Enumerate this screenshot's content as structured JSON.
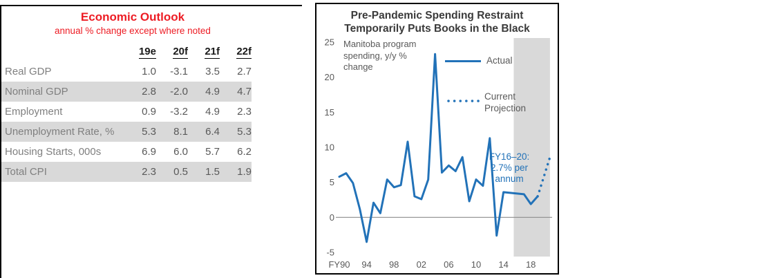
{
  "colors": {
    "red": "#ed1c24",
    "blue": "#2272b8",
    "shade_gray": "#d9d9d9"
  },
  "chart_data": [
    {
      "type": "table",
      "title": "Economic Outlook",
      "subtitle": "annual % change except where noted",
      "columns": [
        "19e",
        "20f",
        "21f",
        "22f"
      ],
      "rows": [
        {
          "label": "Real GDP",
          "values": [
            "1.0",
            "-3.1",
            "3.5",
            "2.7"
          ],
          "shaded": false
        },
        {
          "label": "Nominal GDP",
          "values": [
            "2.8",
            "-2.0",
            "4.9",
            "4.7"
          ],
          "shaded": true
        },
        {
          "label": "Employment",
          "values": [
            "0.9",
            "-3.2",
            "4.9",
            "2.3"
          ],
          "shaded": false
        },
        {
          "label": "Unemployment Rate, %",
          "values": [
            "5.3",
            "8.1",
            "6.4",
            "5.3"
          ],
          "shaded": true
        },
        {
          "label": "Housing Starts, 000s",
          "values": [
            "6.9",
            "6.0",
            "5.7",
            "6.2"
          ],
          "shaded": false
        },
        {
          "label": "Total CPI",
          "values": [
            "2.3",
            "0.5",
            "1.5",
            "1.9"
          ],
          "shaded": true
        }
      ]
    },
    {
      "type": "line",
      "title": "Pre-Pandemic Spending Restraint Temporarily Puts Books in the Black",
      "title_lines": [
        "Pre-Pandemic Spending Restraint",
        "Temporarily Puts Books in the Black"
      ],
      "ylabel": "",
      "xlabel": "",
      "ylim": [
        -5,
        25
      ],
      "yticks": [
        25,
        20,
        15,
        10,
        5,
        0,
        -5
      ],
      "xticks": [
        {
          "label": "FY90",
          "year": 1990
        },
        {
          "label": "94",
          "year": 1994
        },
        {
          "label": "98",
          "year": 1998
        },
        {
          "label": "02",
          "year": 2002
        },
        {
          "label": "06",
          "year": 2006
        },
        {
          "label": "10",
          "year": 2010
        },
        {
          "label": "14",
          "year": 2014
        },
        {
          "label": "18",
          "year": 2018
        }
      ],
      "series": [
        {
          "name": "Actual",
          "style": "solid",
          "x": [
            1990,
            1991,
            1992,
            1993,
            1994,
            1995,
            1996,
            1997,
            1998,
            1999,
            2000,
            2001,
            2002,
            2003,
            2004,
            2005,
            2006,
            2007,
            2008,
            2009,
            2010,
            2011,
            2012,
            2013,
            2014,
            2015,
            2016,
            2017,
            2018,
            2019
          ],
          "values": [
            5.8,
            6.3,
            4.9,
            1.2,
            -3.5,
            2.1,
            0.6,
            5.4,
            4.3,
            4.6,
            10.8,
            3.0,
            2.6,
            5.4,
            23.3,
            6.4,
            7.4,
            6.6,
            8.6,
            2.3,
            5.4,
            4.5,
            11.3,
            -2.6,
            3.6,
            3.5,
            3.4,
            3.3,
            1.9,
            3.0
          ]
        },
        {
          "name": "Current Projection",
          "style": "dotted",
          "x": [
            2019,
            2019.9,
            2020.8
          ],
          "values": [
            3.0,
            5.8,
            8.6
          ]
        }
      ],
      "shaded_region": {
        "from": 2015.5,
        "to": 2020.8
      },
      "grid": false,
      "legend_position": "inside-upper-right",
      "legend": {
        "actual": "Actual",
        "projection_lines": [
          "Current",
          "Projection"
        ]
      },
      "annotations": {
        "note": [
          "Manitoba program",
          "spending, y/y %",
          "change"
        ],
        "callout": [
          "FY16–20:",
          "2.7% per",
          "annum"
        ]
      }
    }
  ]
}
